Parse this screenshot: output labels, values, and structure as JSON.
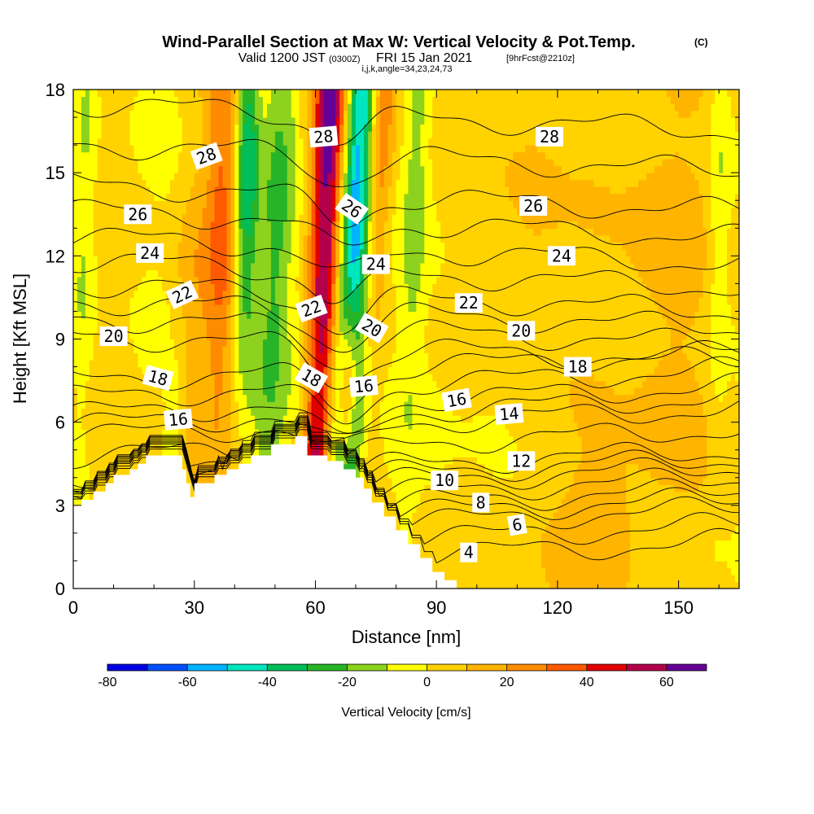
{
  "header": {
    "title": "Wind-Parallel Section at Max W: Vertical Velocity & Pot.Temp.",
    "copyright": "(C)",
    "valid_prefix": "Valid 1200 JST",
    "valid_utc": "(0300Z)",
    "valid_date": "FRI 15 Jan 2021",
    "forecast_info": "[9hrFcst@2210z]",
    "grid_info": "i,j,k,angle=34,23,24,73"
  },
  "chart_data": {
    "type": "heatmap",
    "title": "Wind-Parallel Section at Max W: Vertical Velocity & Pot.Temp.",
    "xlabel": "Distance [nm]",
    "ylabel": "Height [Kft MSL]",
    "xlim": [
      0,
      165
    ],
    "ylim": [
      0,
      18
    ],
    "xticks": [
      0,
      30,
      60,
      90,
      120,
      150
    ],
    "yticks": [
      0,
      3,
      6,
      9,
      12,
      15,
      18
    ],
    "grid": false,
    "colorbar": {
      "title": "Vertical Velocity [cm/s]",
      "min": -80,
      "max": 70,
      "ticks": [
        -80,
        -60,
        -40,
        -20,
        0,
        20,
        40,
        60
      ],
      "bins": [
        {
          "from": -80,
          "to": -70,
          "color": "#0000e6"
        },
        {
          "from": -70,
          "to": -60,
          "color": "#0050ff"
        },
        {
          "from": -60,
          "to": -50,
          "color": "#00b4ff"
        },
        {
          "from": -50,
          "to": -40,
          "color": "#00e6be"
        },
        {
          "from": -40,
          "to": -30,
          "color": "#00be5a"
        },
        {
          "from": -30,
          "to": -20,
          "color": "#28b428"
        },
        {
          "from": -20,
          "to": -10,
          "color": "#8cd21e"
        },
        {
          "from": -10,
          "to": 0,
          "color": "#ffff00"
        },
        {
          "from": 0,
          "to": 10,
          "color": "#ffd200"
        },
        {
          "from": 10,
          "to": 20,
          "color": "#ffb400"
        },
        {
          "from": 20,
          "to": 30,
          "color": "#ff8c00"
        },
        {
          "from": 30,
          "to": 40,
          "color": "#ff5a00"
        },
        {
          "from": 40,
          "to": 50,
          "color": "#e10000"
        },
        {
          "from": 50,
          "to": 60,
          "color": "#b4004b"
        },
        {
          "from": 60,
          "to": 70,
          "color": "#640096"
        }
      ]
    },
    "terrain_profile": [
      [
        0,
        3.0
      ],
      [
        2,
        3.0
      ],
      [
        2,
        3.2
      ],
      [
        5,
        3.2
      ],
      [
        5,
        3.5
      ],
      [
        8,
        3.5
      ],
      [
        8,
        3.8
      ],
      [
        10,
        3.8
      ],
      [
        10,
        4.1
      ],
      [
        14,
        4.1
      ],
      [
        14,
        4.3
      ],
      [
        16,
        4.3
      ],
      [
        16,
        4.5
      ],
      [
        18,
        4.5
      ],
      [
        18,
        4.8
      ],
      [
        27,
        4.8
      ],
      [
        27,
        4.3
      ],
      [
        28,
        4.3
      ],
      [
        28,
        3.8
      ],
      [
        29,
        3.8
      ],
      [
        29,
        3.3
      ],
      [
        30,
        3.3
      ],
      [
        30,
        3.8
      ],
      [
        35,
        3.8
      ],
      [
        35,
        4.1
      ],
      [
        38,
        4.1
      ],
      [
        38,
        4.3
      ],
      [
        41,
        4.3
      ],
      [
        41,
        4.5
      ],
      [
        44,
        4.5
      ],
      [
        44,
        4.8
      ],
      [
        49,
        4.8
      ],
      [
        49,
        5.2
      ],
      [
        55,
        5.2
      ],
      [
        55,
        5.5
      ],
      [
        58,
        5.5
      ],
      [
        58,
        4.8
      ],
      [
        63,
        4.8
      ],
      [
        63,
        4.6
      ],
      [
        67,
        4.6
      ],
      [
        67,
        4.3
      ],
      [
        70,
        4.3
      ],
      [
        70,
        4.0
      ],
      [
        72,
        4.0
      ],
      [
        72,
        3.6
      ],
      [
        74,
        3.6
      ],
      [
        74,
        3.1
      ],
      [
        77,
        3.1
      ],
      [
        77,
        2.6
      ],
      [
        80,
        2.6
      ],
      [
        80,
        2.1
      ],
      [
        83,
        2.1
      ],
      [
        83,
        1.6
      ],
      [
        86,
        1.6
      ],
      [
        86,
        1.1
      ],
      [
        89,
        1.1
      ],
      [
        89,
        0.6
      ],
      [
        92,
        0.6
      ],
      [
        92,
        0.3
      ],
      [
        95,
        0.3
      ],
      [
        95,
        0
      ]
    ],
    "anomalies": [
      {
        "x": 62,
        "y": 12.5,
        "sx": 3,
        "sy": 20,
        "tilt": 0.33,
        "value": 65
      },
      {
        "x": 70,
        "y": 12.0,
        "sx": 3,
        "sy": 20,
        "tilt": 0.33,
        "value": -70
      },
      {
        "x": 75,
        "y": 14.5,
        "sx": 2.5,
        "sy": 10,
        "tilt": 0.33,
        "value": 45
      },
      {
        "x": 68,
        "y": 7.0,
        "sx": 1.8,
        "sy": 2.2,
        "tilt": 0.3,
        "value": 65
      },
      {
        "x": 58,
        "y": 8.0,
        "sx": 2.5,
        "sy": 4.0,
        "tilt": 0.33,
        "value": -25
      },
      {
        "x": 73,
        "y": 8.5,
        "sx": 2.5,
        "sy": 4.0,
        "tilt": 0.33,
        "value": -22
      },
      {
        "x": 50,
        "y": 12.0,
        "sx": 3,
        "sy": 8,
        "tilt": 0.3,
        "value": -22
      },
      {
        "x": 43,
        "y": 15.0,
        "sx": 2,
        "sy": 5,
        "tilt": 0.1,
        "value": -40
      },
      {
        "x": 37,
        "y": 14.0,
        "sx": 2.5,
        "sy": 6,
        "tilt": 0.1,
        "value": 25
      },
      {
        "x": 3,
        "y": 14.0,
        "sx": 2,
        "sy": 6,
        "tilt": 0.1,
        "value": -15
      },
      {
        "x": 25,
        "y": 6.0,
        "sx": 1.5,
        "sy": 1.5,
        "tilt": 0.2,
        "value": -15
      },
      {
        "x": 30,
        "y": 10.0,
        "sx": 4,
        "sy": 5,
        "tilt": 0.25,
        "value": 15
      },
      {
        "x": 85,
        "y": 15.0,
        "sx": 2,
        "sy": 6,
        "tilt": 0.2,
        "value": -15
      },
      {
        "x": 160,
        "y": 14.0,
        "sx": 2,
        "sy": 6,
        "tilt": 0.05,
        "value": -15
      },
      {
        "x": 145,
        "y": 12.0,
        "sx": 8,
        "sy": 8,
        "tilt": 0.0,
        "value": 14
      },
      {
        "x": 113,
        "y": 13.0,
        "sx": 6,
        "sy": 6,
        "tilt": 0.0,
        "value": 12
      },
      {
        "x": 130,
        "y": 2.0,
        "sx": 15,
        "sy": 2,
        "tilt": 0.0,
        "value": 12
      },
      {
        "x": 150,
        "y": 1.0,
        "sx": 8,
        "sy": 1.5,
        "tilt": 0.0,
        "value": -8
      },
      {
        "x": 100,
        "y": 7.0,
        "sx": 8,
        "sy": 3,
        "tilt": 0.0,
        "value": -5
      }
    ],
    "theta_contours": [
      {
        "label": "28",
        "base": 17.0,
        "dip": 0.9
      },
      {
        "label": "26",
        "base": 14.1,
        "dip": 1.0
      },
      {
        "label": "24",
        "base": 12.2,
        "dip": 1.1
      },
      {
        "label": "22",
        "base": 10.5,
        "dip": 1.2
      },
      {
        "label": "20",
        "base": 9.3,
        "dip": 1.3
      },
      {
        "label": "18",
        "base": 8.0,
        "dip": 1.3
      },
      {
        "label": "16",
        "base": 6.8,
        "dip": 1.4
      },
      {
        "label": "14",
        "base": 6.0,
        "dip": 1.0
      },
      {
        "label": "12",
        "base": 4.5,
        "dip": 0.3
      },
      {
        "label": "10",
        "base": 3.9,
        "dip": 0.2
      },
      {
        "label": "8",
        "base": 3.1,
        "dip": 0.1
      },
      {
        "label": "6",
        "base": 2.4,
        "dip": 0.1
      },
      {
        "label": "4",
        "base": 1.2,
        "dip": 0.0
      }
    ],
    "contour_labels": [
      {
        "text": "28",
        "x": 33,
        "y": 15.6,
        "rotate": -20
      },
      {
        "text": "28",
        "x": 62,
        "y": 16.3,
        "rotate": -5
      },
      {
        "text": "28",
        "x": 118,
        "y": 16.3,
        "rotate": 0
      },
      {
        "text": "26",
        "x": 16,
        "y": 13.5,
        "rotate": 0
      },
      {
        "text": "26",
        "x": 69,
        "y": 13.7,
        "rotate": 35
      },
      {
        "text": "26",
        "x": 114,
        "y": 13.8,
        "rotate": 0
      },
      {
        "text": "24",
        "x": 19,
        "y": 12.1,
        "rotate": 0
      },
      {
        "text": "24",
        "x": 75,
        "y": 11.7,
        "rotate": 0
      },
      {
        "text": "24",
        "x": 121,
        "y": 12.0,
        "rotate": 0
      },
      {
        "text": "22",
        "x": 27,
        "y": 10.6,
        "rotate": -25
      },
      {
        "text": "22",
        "x": 59,
        "y": 10.1,
        "rotate": -20
      },
      {
        "text": "22",
        "x": 98,
        "y": 10.3,
        "rotate": 0
      },
      {
        "text": "20",
        "x": 10,
        "y": 9.1,
        "rotate": 0
      },
      {
        "text": "20",
        "x": 74,
        "y": 9.4,
        "rotate": 30
      },
      {
        "text": "20",
        "x": 111,
        "y": 9.3,
        "rotate": 0
      },
      {
        "text": "18",
        "x": 21,
        "y": 7.6,
        "rotate": 15
      },
      {
        "text": "18",
        "x": 59,
        "y": 7.6,
        "rotate": 30
      },
      {
        "text": "18",
        "x": 125,
        "y": 8.0,
        "rotate": 0
      },
      {
        "text": "16",
        "x": 26,
        "y": 6.1,
        "rotate": -5
      },
      {
        "text": "16",
        "x": 72,
        "y": 7.3,
        "rotate": -5
      },
      {
        "text": "16",
        "x": 95,
        "y": 6.8,
        "rotate": -10
      },
      {
        "text": "14",
        "x": 108,
        "y": 6.3,
        "rotate": -5
      },
      {
        "text": "12",
        "x": 111,
        "y": 4.6,
        "rotate": 0
      },
      {
        "text": "10",
        "x": 92,
        "y": 3.9,
        "rotate": 0
      },
      {
        "text": "8",
        "x": 101,
        "y": 3.1,
        "rotate": 0
      },
      {
        "text": "6",
        "x": 110,
        "y": 2.3,
        "rotate": -10
      },
      {
        "text": "4",
        "x": 98,
        "y": 1.3,
        "rotate": 0
      }
    ]
  }
}
